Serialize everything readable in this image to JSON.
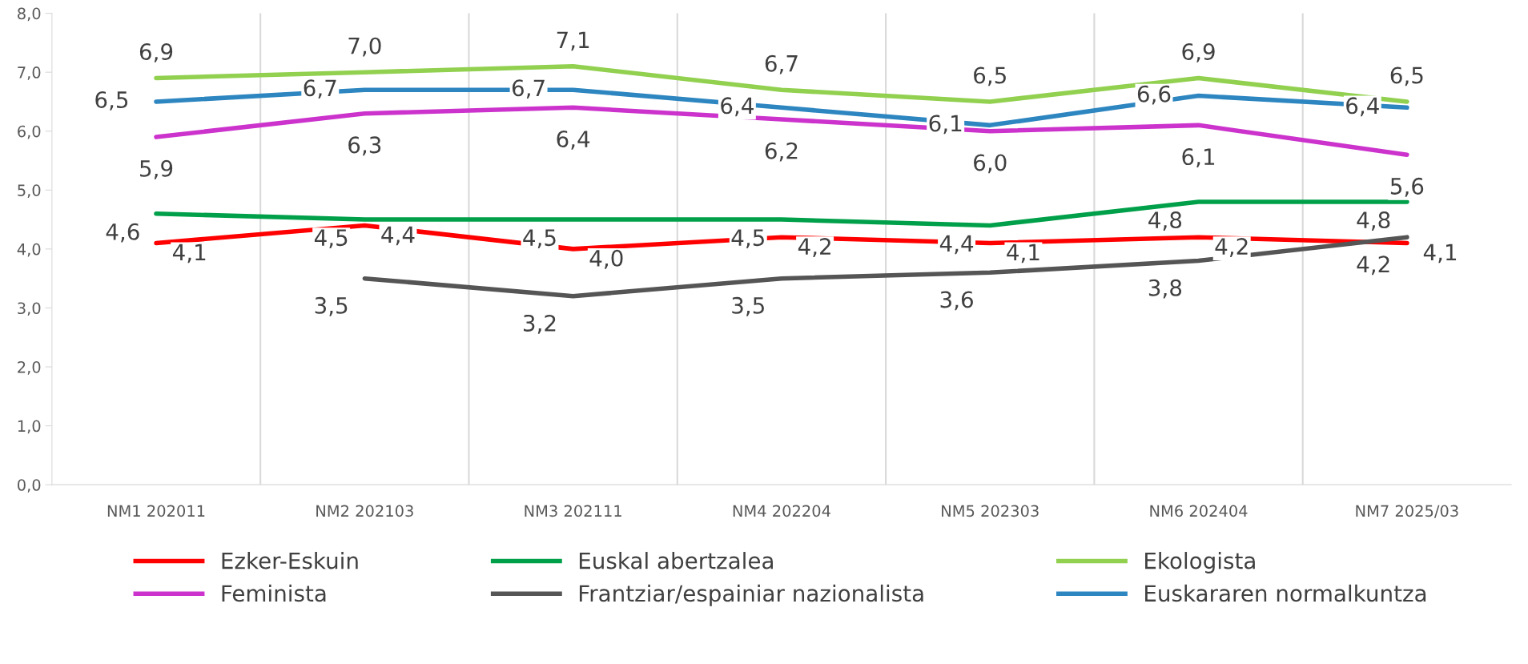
{
  "chart_data": {
    "type": "line",
    "categories": [
      "NM1 202011",
      "NM2 202103",
      "NM3 202111",
      "NM4 202204",
      "NM5 202303",
      "NM6 202404",
      "NM7 2025/03"
    ],
    "series": [
      {
        "name": "Ezker-Eskuin",
        "color": "#ff0000",
        "values": [
          4.1,
          4.4,
          4.0,
          4.2,
          4.1,
          4.2,
          4.1
        ],
        "value_labels": [
          "4,1",
          "4,4",
          "4,0",
          "4,2",
          "4,1",
          "4,2",
          "4,1"
        ]
      },
      {
        "name": "Feminista",
        "color": "#cc33cc",
        "values": [
          5.9,
          6.3,
          6.4,
          6.2,
          6.0,
          6.1,
          5.6
        ],
        "value_labels": [
          "5,9",
          "6,3",
          "6,4",
          "6,2",
          "6,0",
          "6,1",
          "5,6"
        ]
      },
      {
        "name": "Euskal abertzalea",
        "color": "#00a04a",
        "values": [
          4.6,
          4.5,
          4.5,
          4.5,
          4.4,
          4.8,
          4.8
        ],
        "value_labels": [
          "4,6",
          "4,5",
          "4,5",
          "4,5",
          "4,4",
          "4,8",
          "4,8"
        ]
      },
      {
        "name": "Frantziar/espainiar nazionalista",
        "color": "#555555",
        "values": [
          null,
          3.5,
          3.2,
          3.5,
          3.6,
          3.8,
          4.2
        ],
        "value_labels": [
          null,
          "3,5",
          "3,2",
          "3,5",
          "3,6",
          "3,8",
          "4,2"
        ]
      },
      {
        "name": "Ekologista",
        "color": "#92d050",
        "values": [
          6.9,
          7.0,
          7.1,
          6.7,
          6.5,
          6.9,
          6.5
        ],
        "value_labels": [
          "6,9",
          "7,0",
          "7,1",
          "6,7",
          "6,5",
          "6,9",
          "6,5"
        ]
      },
      {
        "name": "Euskararen normalkuntza",
        "color": "#2e86c1",
        "values": [
          6.5,
          6.7,
          6.7,
          6.4,
          6.1,
          6.6,
          6.4
        ],
        "value_labels": [
          "6,5",
          "6,7",
          "6,7",
          "6,4",
          "6,1",
          "6,6",
          "6,4"
        ]
      }
    ],
    "ylim": [
      0,
      8
    ],
    "yticks": [
      {
        "value": 0,
        "label": "0,0"
      },
      {
        "value": 1,
        "label": "1,0"
      },
      {
        "value": 2,
        "label": "2,0"
      },
      {
        "value": 3,
        "label": "3,0"
      },
      {
        "value": 4,
        "label": "4,0"
      },
      {
        "value": 5,
        "label": "5,0"
      },
      {
        "value": 6,
        "label": "6,0"
      },
      {
        "value": 7,
        "label": "7,0"
      },
      {
        "value": 8,
        "label": "8,0"
      }
    ],
    "grid": "x",
    "legend": "bottom",
    "marker": "none",
    "line_style": "solid"
  }
}
